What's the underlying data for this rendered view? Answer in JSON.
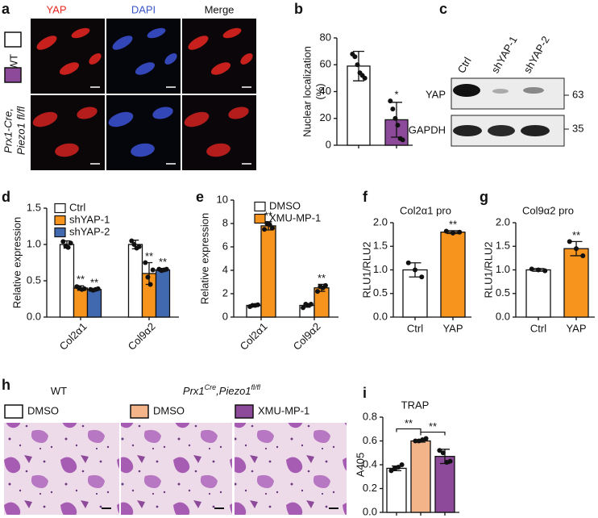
{
  "panel_a": {
    "label": "a",
    "columns": [
      "YAP",
      "DAPI",
      "Merge"
    ],
    "rows": [
      {
        "lines": [
          "WT"
        ],
        "color": "#ffffff"
      },
      {
        "lines": [
          "Prx1-Cre,",
          "Piezo1 fl/fl"
        ],
        "color": "#8e4a9a"
      }
    ]
  },
  "panel_c": {
    "label": "c",
    "lanes": [
      "Ctrl",
      "shYAP-1",
      "shYAP-2"
    ],
    "blots": [
      {
        "protein": "YAP",
        "size": 63
      },
      {
        "protein": "GAPDH",
        "size": 35
      }
    ]
  },
  "panel_h": {
    "label": "h",
    "groups": [
      {
        "title": [
          {
            "text": "WT"
          }
        ],
        "legend": [
          {
            "name": "DMSO",
            "color": "#ffffff"
          }
        ]
      },
      {
        "title": [
          {
            "text": "Prx1"
          },
          {
            "text": "Cre",
            "sup": true
          },
          {
            "text": ",Piezo1"
          },
          {
            "text": "fl/fl",
            "sup": true
          }
        ],
        "legend": [
          {
            "name": "DMSO",
            "color": "#f4b48a"
          },
          {
            "name": "XMU-MP-1",
            "color": "#8e4a9a"
          }
        ]
      }
    ]
  },
  "chart_data": [
    {
      "type": "bar",
      "label": "b",
      "ylabel": [
        "Nuclear localization",
        "(%)"
      ],
      "categories": [
        null,
        null
      ],
      "values": [
        59,
        19
      ],
      "errors": [
        11,
        13
      ],
      "colors": [
        "#ffffff",
        "#8e4a9a"
      ],
      "points": [
        [
          68,
          66,
          60,
          54,
          52,
          50
        ],
        [
          33,
          27,
          20,
          15,
          5,
          4
        ]
      ],
      "significance": [
        null,
        "*"
      ],
      "ylim": [
        0,
        80
      ],
      "yticks": [
        0,
        20,
        40,
        60,
        80
      ]
    },
    {
      "type": "bar",
      "label": "d",
      "ylabel": "Relative expression",
      "categories": [
        "Col2α1",
        "Col9α2"
      ],
      "series": [
        {
          "name": "Ctrl",
          "color": "#ffffff",
          "values": [
            1.0,
            1.0
          ],
          "errors": [
            0.05,
            0.06
          ],
          "points": [
            [
              1.04,
              0.98,
              0.96,
              1.02
            ],
            [
              1.05,
              1.0,
              0.95,
              0.97
            ]
          ],
          "significance": [
            null,
            null
          ]
        },
        {
          "name": "shYAP-1",
          "color": "#f7941d",
          "values": [
            0.4,
            0.6
          ],
          "errors": [
            0.03,
            0.15
          ],
          "points": [
            [
              0.42,
              0.4,
              0.38,
              0.39
            ],
            [
              0.75,
              0.55,
              0.45,
              0.65
            ]
          ],
          "significance": [
            "**",
            "**"
          ]
        },
        {
          "name": "shYAP-2",
          "color": "#4169b0",
          "values": [
            0.38,
            0.65
          ],
          "errors": [
            0.01,
            0.02
          ],
          "points": [
            [
              0.38,
              0.37,
              0.38,
              0.39
            ],
            [
              0.66,
              0.64,
              0.65,
              0.66
            ]
          ],
          "significance": [
            "**",
            "**"
          ]
        }
      ],
      "ylim": [
        0,
        1.5
      ],
      "yticks": [
        {
          "value": 0,
          "label": "0.0"
        },
        {
          "value": 0.5,
          "label": "0.5"
        },
        {
          "value": 1,
          "label": "1.0"
        },
        {
          "value": 1.5,
          "label": "1.5"
        }
      ]
    },
    {
      "type": "bar",
      "label": "e",
      "ylabel": "Relative expression",
      "categories": [
        "Col2α1",
        "Col9α2"
      ],
      "series": [
        {
          "name": "DMSO",
          "color": "#ffffff",
          "values": [
            1.0,
            1.0
          ],
          "errors": [
            0.05,
            0.15
          ],
          "points": [
            [
              0.9,
              1.0,
              1.0,
              1.05
            ],
            [
              0.8,
              1.1,
              1.0,
              1.1
            ]
          ],
          "significance": [
            null,
            null
          ]
        },
        {
          "name": "XMU-MP-1",
          "color": "#f7941d",
          "values": [
            7.8,
            2.5
          ],
          "errors": [
            0.35,
            0.3
          ],
          "points": [
            [
              7.5,
              8.0,
              7.9,
              7.6
            ],
            [
              2.2,
              2.6,
              2.5,
              2.7
            ]
          ],
          "significance": [
            "**",
            "**"
          ]
        }
      ],
      "ylim": [
        0,
        10
      ],
      "yticks": [
        0,
        2,
        4,
        6,
        8,
        10
      ]
    },
    {
      "type": "bar",
      "label": "f",
      "title": "Col2α1 pro",
      "ylabel": "RLU1/RLU2",
      "categories": [
        "Ctrl",
        "YAP"
      ],
      "values": [
        1.0,
        1.8
      ],
      "errors": [
        0.15,
        0.03
      ],
      "colors": [
        "#ffffff",
        "#f7941d"
      ],
      "points": [
        [
          1.15,
          1.0,
          0.85
        ],
        [
          1.82,
          1.78,
          1.8
        ]
      ],
      "significance": [
        null,
        "**"
      ],
      "ylim": [
        0,
        2
      ],
      "yticks": [
        {
          "value": 0,
          "label": "0.0"
        },
        {
          "value": 0.5,
          "label": "0.5"
        },
        {
          "value": 1,
          "label": "1.0"
        },
        {
          "value": 1.5,
          "label": "1.5"
        },
        {
          "value": 2,
          "label": "2.0"
        }
      ]
    },
    {
      "type": "bar",
      "label": "g",
      "title": "Col9α2 pro",
      "ylabel": "RLU1/RLU2",
      "categories": [
        "Ctrl",
        "YAP"
      ],
      "values": [
        1.0,
        1.45
      ],
      "errors": [
        0.03,
        0.15
      ],
      "colors": [
        "#ffffff",
        "#f7941d"
      ],
      "points": [
        [
          1.02,
          1.0,
          0.98
        ],
        [
          1.6,
          1.45,
          1.3
        ]
      ],
      "significance": [
        null,
        "**"
      ],
      "ylim": [
        0,
        2
      ],
      "yticks": [
        {
          "value": 0,
          "label": "0.0"
        },
        {
          "value": 0.5,
          "label": "0.5"
        },
        {
          "value": 1,
          "label": "1.0"
        },
        {
          "value": 1.5,
          "label": "1.5"
        },
        {
          "value": 2,
          "label": "2.0"
        }
      ]
    },
    {
      "type": "bar",
      "label": "i",
      "title": "TRAP",
      "ylabel": "A405",
      "categories": [
        null,
        null,
        null
      ],
      "values": [
        0.37,
        0.6,
        0.47
      ],
      "errors": [
        0.02,
        0.01,
        0.06
      ],
      "colors": [
        "#ffffff",
        "#f4b48a",
        "#8e4a9a"
      ],
      "points": [
        [
          0.35,
          0.37,
          0.38,
          0.4
        ],
        [
          0.6,
          0.6,
          0.61,
          0.62
        ],
        [
          0.52,
          0.5,
          0.42,
          0.43
        ]
      ],
      "brackets": [
        {
          "from": 0,
          "to": 1,
          "text": "**"
        },
        {
          "from": 1,
          "to": 2,
          "text": "**"
        }
      ],
      "ylim": [
        0,
        0.8
      ],
      "yticks": [
        {
          "value": 0,
          "label": "0.0"
        },
        {
          "value": 0.2,
          "label": "0.2"
        },
        {
          "value": 0.4,
          "label": "0.4"
        },
        {
          "value": 0.6,
          "label": "0.6"
        },
        {
          "value": 0.8,
          "label": "0.8"
        }
      ]
    }
  ]
}
